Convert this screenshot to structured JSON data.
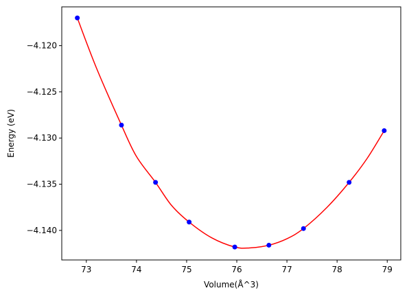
{
  "chart_data": {
    "type": "scatter",
    "title": "",
    "xlabel": "Volume(Å^3)",
    "ylabel": "Energy (eV)",
    "xlim": [
      72.51,
      79.27
    ],
    "ylim": [
      -4.1432,
      -4.1158
    ],
    "x_ticks": [
      73,
      74,
      75,
      76,
      77,
      78,
      79
    ],
    "y_ticks": [
      -4.14,
      -4.135,
      -4.13,
      -4.125,
      -4.12
    ],
    "x_tick_labels": [
      "73",
      "74",
      "75",
      "76",
      "77",
      "78",
      "79"
    ],
    "y_tick_labels": [
      "−4.140",
      "−4.135",
      "−4.130",
      "−4.125",
      "−4.120"
    ],
    "grid": false,
    "series": [
      {
        "kind": "points",
        "color": "#0000ff",
        "marker": "circle",
        "x": [
          72.82,
          73.7,
          74.38,
          75.05,
          75.96,
          76.64,
          77.33,
          78.24,
          78.94
        ],
        "y": [
          -4.117,
          -4.1286,
          -4.1348,
          -4.1391,
          -4.1418,
          -4.1416,
          -4.1398,
          -4.1348,
          -4.1292
        ]
      },
      {
        "kind": "fit-curve",
        "color": "#ff0000",
        "x": [
          72.82,
          73.2,
          73.7,
          74.0,
          74.38,
          74.7,
          75.05,
          75.5,
          75.96,
          76.25,
          76.64,
          77.0,
          77.33,
          77.8,
          78.24,
          78.6,
          78.94
        ],
        "y": [
          -4.117,
          -4.1224,
          -4.1286,
          -4.132,
          -4.1348,
          -4.1373,
          -4.1391,
          -4.1408,
          -4.1418,
          -4.1419,
          -4.1416,
          -4.1409,
          -4.1398,
          -4.1375,
          -4.1348,
          -4.1322,
          -4.1292
        ]
      }
    ]
  }
}
